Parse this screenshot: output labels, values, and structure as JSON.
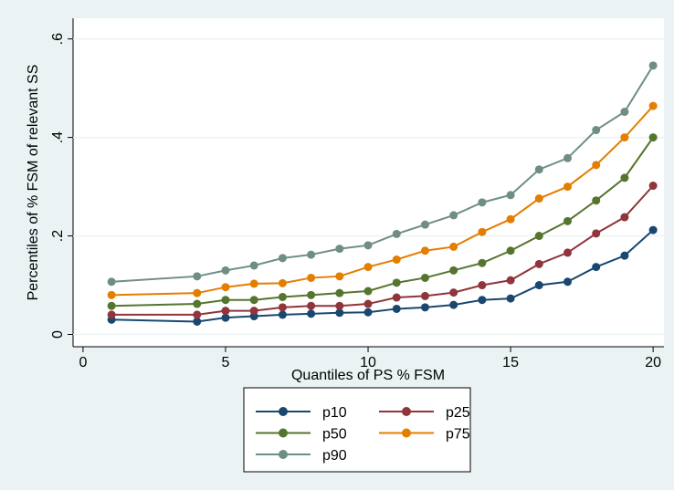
{
  "chart_data": {
    "type": "line",
    "x_label": "Quantiles of PS % FSM",
    "y_label": "Percentiles of % FSM of relevant SS",
    "x": [
      1,
      4,
      5,
      6,
      7,
      8,
      9,
      10,
      11,
      12,
      13,
      14,
      15,
      16,
      17,
      18,
      19,
      20
    ],
    "series": [
      {
        "name": "p10",
        "color": "#1a476f",
        "values": [
          0.03,
          0.026,
          0.034,
          0.037,
          0.04,
          0.042,
          0.044,
          0.045,
          0.052,
          0.055,
          0.06,
          0.07,
          0.073,
          0.1,
          0.107,
          0.137,
          0.16,
          0.212
        ]
      },
      {
        "name": "p25",
        "color": "#90353b",
        "values": [
          0.04,
          0.04,
          0.048,
          0.048,
          0.055,
          0.058,
          0.058,
          0.062,
          0.075,
          0.078,
          0.085,
          0.1,
          0.11,
          0.143,
          0.166,
          0.205,
          0.238,
          0.302
        ]
      },
      {
        "name": "p50",
        "color": "#55752f",
        "values": [
          0.058,
          0.062,
          0.07,
          0.07,
          0.076,
          0.08,
          0.084,
          0.088,
          0.105,
          0.115,
          0.13,
          0.145,
          0.17,
          0.2,
          0.23,
          0.272,
          0.318,
          0.4
        ]
      },
      {
        "name": "p75",
        "color": "#e37e00",
        "values": [
          0.08,
          0.084,
          0.096,
          0.103,
          0.104,
          0.115,
          0.118,
          0.137,
          0.152,
          0.17,
          0.178,
          0.208,
          0.234,
          0.276,
          0.3,
          0.344,
          0.4,
          0.464
        ]
      },
      {
        "name": "p90",
        "color": "#6e8e84",
        "values": [
          0.107,
          0.118,
          0.13,
          0.14,
          0.155,
          0.162,
          0.174,
          0.181,
          0.204,
          0.223,
          0.242,
          0.268,
          0.283,
          0.335,
          0.358,
          0.415,
          0.452,
          0.546
        ]
      }
    ],
    "xlim": [
      -0.35,
      20.38
    ],
    "xticks": [
      0,
      5,
      10,
      15,
      20
    ],
    "ylim": [
      -0.025,
      0.642
    ],
    "yticks": [
      0,
      {
        "value": 0.2,
        "label": ".2"
      },
      {
        "value": 0.4,
        "label": ".4"
      },
      {
        "value": 0.6,
        "label": ".6"
      }
    ],
    "grid": true,
    "legend": "bottom"
  }
}
